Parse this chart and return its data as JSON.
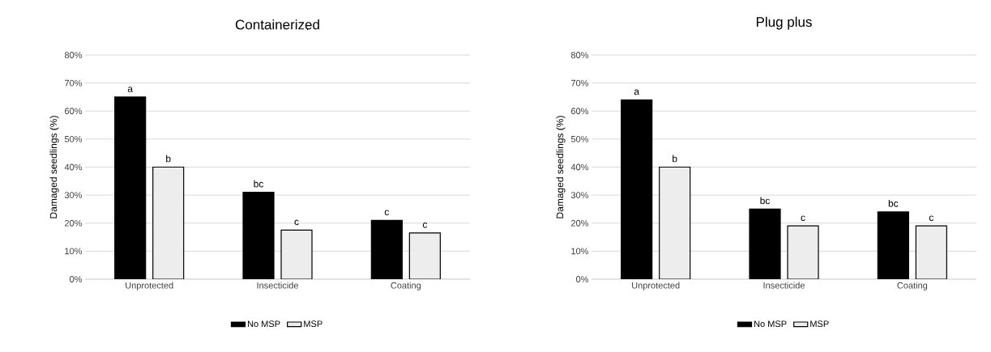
{
  "chart_data": [
    {
      "type": "bar",
      "title": "Containerized",
      "ylabel": "Damaged seedlings (%)",
      "categories": [
        "Unprotected",
        "Insecticide",
        "Coating"
      ],
      "series": [
        {
          "name": "No MSP",
          "color": "#000000",
          "values": [
            65,
            31,
            21
          ]
        },
        {
          "name": "MSP",
          "color": "#ededed",
          "values": [
            40,
            17.5,
            16.5
          ]
        }
      ],
      "ylim": [
        0,
        80
      ],
      "yticks": [
        {
          "value": 0,
          "label": "0%"
        },
        {
          "value": 10,
          "label": "10%"
        },
        {
          "value": 20,
          "label": "20%"
        },
        {
          "value": 30,
          "label": "30%"
        },
        {
          "value": 40,
          "label": "40%"
        },
        {
          "value": 50,
          "label": "50%"
        },
        {
          "value": 60,
          "label": "60%"
        },
        {
          "value": 70,
          "label": "70%"
        },
        {
          "value": 80,
          "label": "80%"
        }
      ],
      "grid": "y",
      "legend": "bottom",
      "annotations": [
        {
          "text": "a",
          "x": "Unprotected",
          "y": 65
        },
        {
          "text": "b",
          "x": "Unprotected",
          "y": 40
        },
        {
          "text": "bc",
          "x": "Insecticide",
          "y": 31
        },
        {
          "text": "c",
          "x": "Insecticide",
          "y": 17.5
        },
        {
          "text": "c",
          "x": "Coating",
          "y": 21
        },
        {
          "text": "c",
          "x": "Coating",
          "y": 16.5
        }
      ]
    },
    {
      "type": "bar",
      "title": "Plug plus",
      "ylabel": "Damaged seedlings (%)",
      "categories": [
        "Unprotected",
        "Insecticide",
        "Coating"
      ],
      "series": [
        {
          "name": "No MSP",
          "color": "#000000",
          "values": [
            64,
            25,
            24
          ]
        },
        {
          "name": "MSP",
          "color": "#ededed",
          "values": [
            40,
            19,
            19
          ]
        }
      ],
      "ylim": [
        0,
        80
      ],
      "yticks": [
        {
          "value": 0,
          "label": "0%"
        },
        {
          "value": 10,
          "label": "10%"
        },
        {
          "value": 20,
          "label": "20%"
        },
        {
          "value": 30,
          "label": "30%"
        },
        {
          "value": 40,
          "label": "40%"
        },
        {
          "value": 50,
          "label": "50%"
        },
        {
          "value": 60,
          "label": "60%"
        },
        {
          "value": 70,
          "label": "70%"
        },
        {
          "value": 80,
          "label": "80%"
        }
      ],
      "grid": "y",
      "legend": "bottom",
      "annotations": [
        {
          "text": "a",
          "x": "Unprotected",
          "y": 64
        },
        {
          "text": "b",
          "x": "Unprotected",
          "y": 40
        },
        {
          "text": "bc",
          "x": "Insecticide",
          "y": 25
        },
        {
          "text": "c",
          "x": "Insecticide",
          "y": 19
        },
        {
          "text": "bc",
          "x": "Coating",
          "y": 24
        },
        {
          "text": "c",
          "x": "Coating",
          "y": 19
        }
      ]
    }
  ]
}
